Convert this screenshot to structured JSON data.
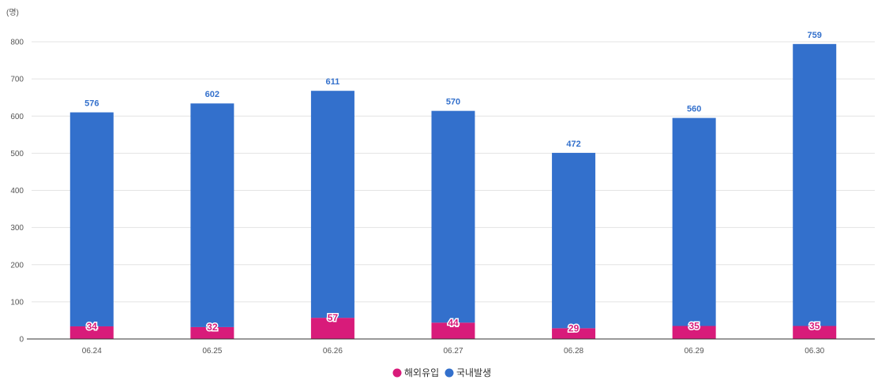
{
  "chart_data": {
    "type": "bar",
    "stacked": true,
    "unit_label": "(명)",
    "categories": [
      "06.24",
      "06.25",
      "06.26",
      "06.27",
      "06.28",
      "06.29",
      "06.30"
    ],
    "series": [
      {
        "name": "해외유입",
        "color": "#d81b7a",
        "values": [
          34,
          32,
          57,
          44,
          29,
          35,
          35
        ]
      },
      {
        "name": "국내발생",
        "color": "#3370cc",
        "values": [
          576,
          602,
          611,
          570,
          472,
          560,
          759
        ]
      }
    ],
    "ylim": [
      0,
      800
    ],
    "yticks": [
      0,
      100,
      200,
      300,
      400,
      500,
      600,
      700,
      800
    ],
    "grid": true,
    "legend_position": "bottom-center"
  }
}
